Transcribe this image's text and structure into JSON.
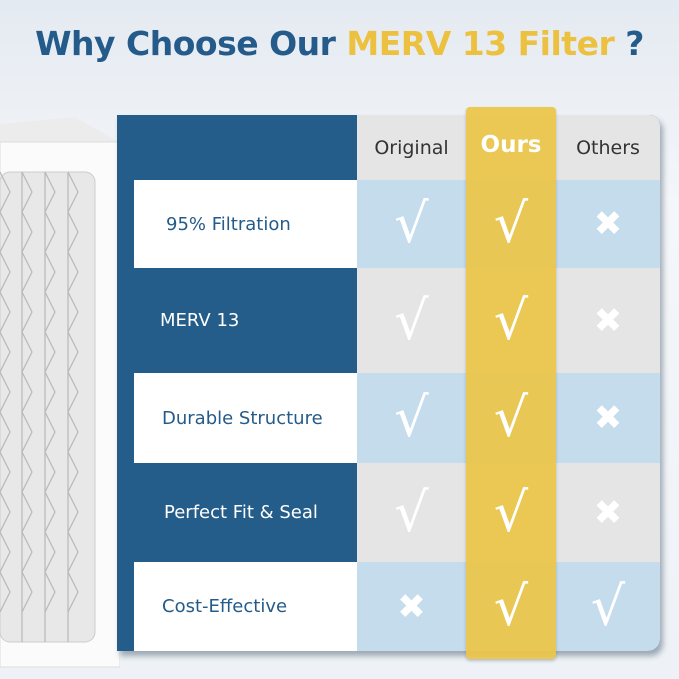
{
  "title": {
    "prefix": "Why Choose Our ",
    "highlight": "MERV 13 Filter",
    "suffix": " ?"
  },
  "colors": {
    "brand_blue": "#255d8a",
    "accent_yellow": "#ecc13f",
    "row_blue": "#c5dcec",
    "row_gray": "#e6e5e6"
  },
  "columns": [
    "Original",
    "Ours",
    "Others"
  ],
  "rows": [
    {
      "label": "95% Filtration",
      "values": [
        "check",
        "check",
        "cross"
      ]
    },
    {
      "label": "MERV 13",
      "values": [
        "check",
        "check",
        "cross"
      ]
    },
    {
      "label": "Durable Structure",
      "values": [
        "check",
        "check",
        "cross"
      ]
    },
    {
      "label": "Perfect Fit & Seal",
      "values": [
        "check",
        "check",
        "cross"
      ]
    },
    {
      "label": "Cost-Effective",
      "values": [
        "cross",
        "check",
        "check"
      ]
    }
  ]
}
